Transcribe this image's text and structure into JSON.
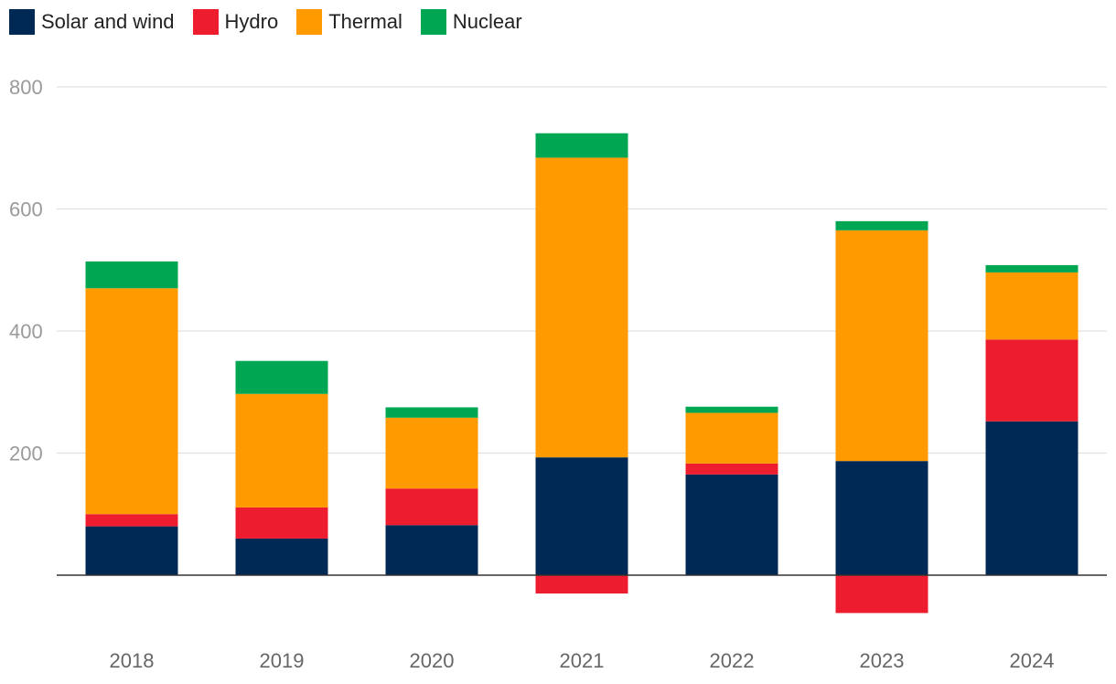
{
  "chart_data": {
    "type": "bar",
    "stacked": true,
    "title": "",
    "xlabel": "",
    "ylabel": "",
    "ylim": [
      -75,
      800
    ],
    "yticks": [
      200,
      400,
      600,
      800
    ],
    "grid": true,
    "legend_position": "top-left",
    "categories": [
      "2018",
      "2019",
      "2020",
      "2021",
      "2022",
      "2023",
      "2024"
    ],
    "series": [
      {
        "name": "Solar and wind",
        "color": "#002855",
        "values": [
          80,
          60,
          82,
          193,
          165,
          187,
          252
        ]
      },
      {
        "name": "Hydro",
        "color": "#ed1c2e",
        "values": [
          20,
          51,
          60,
          -30,
          18,
          -62,
          134
        ]
      },
      {
        "name": "Thermal",
        "color": "#ff9b00",
        "values": [
          370,
          186,
          116,
          491,
          83,
          378,
          110
        ]
      },
      {
        "name": "Nuclear",
        "color": "#00a651",
        "values": [
          44,
          54,
          17,
          40,
          10,
          15,
          12
        ]
      }
    ]
  }
}
